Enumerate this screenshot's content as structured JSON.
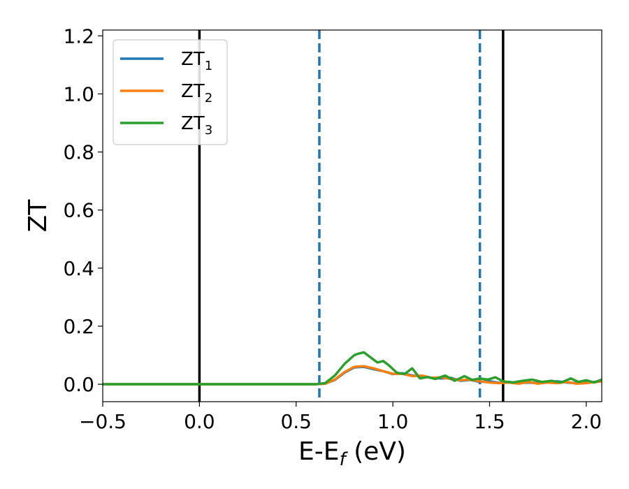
{
  "chart_data": {
    "type": "line",
    "xlabel_parts": {
      "main": "E-E",
      "sub": "f",
      "unit": " (eV)"
    },
    "ylabel": "ZT",
    "xlim": [
      -0.5,
      2.08
    ],
    "ylim": [
      -0.06,
      1.22
    ],
    "x_ticks": [
      "−0.5",
      "0.0",
      "0.5",
      "1.0",
      "1.5",
      "2.0"
    ],
    "x_tick_values": [
      -0.5,
      0.0,
      0.5,
      1.0,
      1.5,
      2.0
    ],
    "y_ticks": [
      "0.0",
      "0.2",
      "0.4",
      "0.6",
      "0.8",
      "1.0",
      "1.2"
    ],
    "y_tick_values": [
      0.0,
      0.2,
      0.4,
      0.6,
      0.8,
      1.0,
      1.2
    ],
    "legend_position": "upper-left",
    "vertical_lines": [
      {
        "x": 0.0,
        "style": "solid",
        "color": "#000000"
      },
      {
        "x": 1.57,
        "style": "solid",
        "color": "#000000"
      },
      {
        "x": 0.62,
        "style": "dashed",
        "color": "#1f77b4"
      },
      {
        "x": 1.45,
        "style": "dashed",
        "color": "#1f77b4"
      }
    ],
    "series": [
      {
        "name": "ZT",
        "sub": "1",
        "color": "#1f77b4",
        "x": [
          -0.5,
          0.6,
          0.65,
          0.7,
          0.75,
          0.8,
          0.85,
          0.9,
          0.95,
          1.0,
          1.05,
          1.1,
          1.15,
          1.2,
          1.25,
          1.3,
          1.35,
          1.4,
          1.45,
          1.5,
          1.55,
          1.6,
          1.65,
          1.7,
          1.75,
          1.8,
          1.85,
          1.9,
          1.95,
          2.0,
          2.08
        ],
        "y": [
          0.0,
          0.0,
          0.002,
          0.015,
          0.04,
          0.058,
          0.06,
          0.052,
          0.045,
          0.035,
          0.038,
          0.03,
          0.028,
          0.022,
          0.02,
          0.022,
          0.012,
          0.015,
          0.008,
          0.01,
          0.005,
          0.008,
          0.004,
          0.006,
          0.004,
          0.008,
          0.01,
          0.006,
          0.004,
          0.006,
          0.01
        ]
      },
      {
        "name": "ZT",
        "sub": "2",
        "color": "#ff7f0e",
        "x": [
          -0.5,
          0.6,
          0.65,
          0.7,
          0.75,
          0.8,
          0.85,
          0.9,
          0.95,
          1.0,
          1.05,
          1.1,
          1.15,
          1.2,
          1.25,
          1.3,
          1.35,
          1.4,
          1.45,
          1.5,
          1.55,
          1.6,
          1.65,
          1.7,
          1.75,
          1.8,
          1.85,
          1.9,
          1.95,
          2.0,
          2.08
        ],
        "y": [
          0.0,
          0.0,
          0.002,
          0.016,
          0.042,
          0.06,
          0.062,
          0.055,
          0.045,
          0.036,
          0.036,
          0.028,
          0.03,
          0.022,
          0.024,
          0.018,
          0.014,
          0.016,
          0.01,
          0.006,
          0.004,
          0.006,
          0.002,
          0.008,
          0.002,
          0.006,
          0.004,
          0.008,
          0.002,
          0.004,
          0.01
        ]
      },
      {
        "name": "ZT",
        "sub": "3",
        "color": "#2ca02c",
        "x": [
          -0.5,
          0.6,
          0.65,
          0.7,
          0.75,
          0.8,
          0.82,
          0.85,
          0.88,
          0.92,
          0.95,
          0.98,
          1.02,
          1.06,
          1.1,
          1.14,
          1.18,
          1.22,
          1.27,
          1.32,
          1.37,
          1.41,
          1.45,
          1.49,
          1.53,
          1.57,
          1.62,
          1.67,
          1.72,
          1.77,
          1.82,
          1.87,
          1.92,
          1.96,
          2.0,
          2.04,
          2.08
        ],
        "y": [
          0.0,
          0.0,
          0.004,
          0.03,
          0.07,
          0.1,
          0.105,
          0.11,
          0.095,
          0.075,
          0.08,
          0.065,
          0.04,
          0.035,
          0.055,
          0.02,
          0.025,
          0.018,
          0.03,
          0.012,
          0.028,
          0.015,
          0.02,
          0.016,
          0.024,
          0.01,
          0.006,
          0.012,
          0.016,
          0.008,
          0.012,
          0.006,
          0.02,
          0.008,
          0.014,
          0.006,
          0.016
        ]
      }
    ]
  }
}
